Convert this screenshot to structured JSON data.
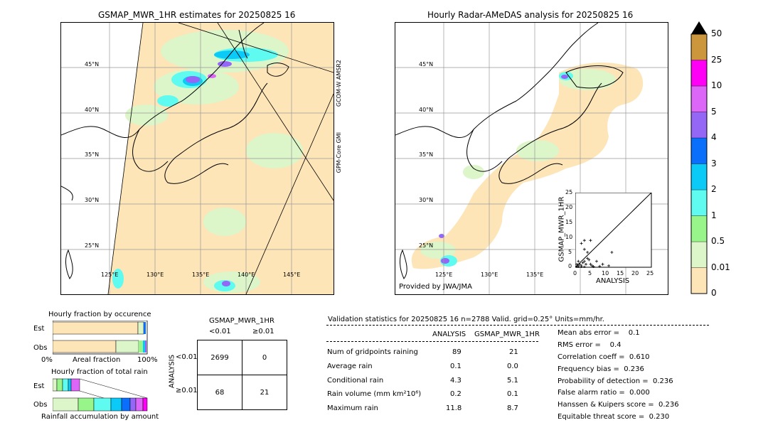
{
  "map_left": {
    "title": "GSMAP_MWR_1HR estimates for 20250825 16",
    "lat_labels": [
      "45°N",
      "40°N",
      "35°N",
      "30°N",
      "25°N"
    ],
    "lon_labels": [
      "125°E",
      "130°E",
      "135°E",
      "140°E",
      "145°E"
    ],
    "swath_labels": [
      "GCOM-W AMSR2",
      "GPM-Core GMI"
    ]
  },
  "map_right": {
    "title": "Hourly Radar-AMeDAS analysis for 20250825 16",
    "lat_labels": [
      "45°N",
      "40°N",
      "35°N",
      "30°N",
      "25°N"
    ],
    "lon_labels": [
      "125°E",
      "130°E",
      "135°E"
    ],
    "credit": "Provided by JWA/JMA"
  },
  "scatter_inset": {
    "xlabel": "ANALYSIS",
    "ylabel": "GSMAP_MWR_1HR",
    "ticks": [
      "0",
      "5",
      "10",
      "15",
      "20",
      "25"
    ]
  },
  "colorbar": {
    "labels": [
      "0",
      "0.01",
      "0.5",
      "1",
      "2",
      "3",
      "4",
      "5",
      "10",
      "25",
      "50"
    ],
    "colors": [
      "#fde5b8",
      "#dcf5c9",
      "#98f58a",
      "#5ffbf0",
      "#0ccaf7",
      "#0a6ffb",
      "#9567f7",
      "#dc66f7",
      "#ff00f7",
      "#cc963c"
    ]
  },
  "occurrence": {
    "title": "Hourly fraction by occurence",
    "row_labels": [
      "Est",
      "Obs"
    ],
    "axis_labels": [
      "0%",
      "Areal fraction",
      "100%"
    ],
    "est_fractions": [
      0.9,
      0.02,
      0.02,
      0.02,
      0.01
    ],
    "obs_fractions": [
      0.67,
      0.2,
      0.05,
      0.03,
      0.02
    ]
  },
  "total_rain": {
    "title": "Hourly fraction of total rain",
    "row_labels": [
      "Est",
      "Obs"
    ],
    "axis_label": "Rainfall accumulation by amount"
  },
  "contingency": {
    "title": "GSMAP_MWR_1HR",
    "col_headers": [
      "<0.01",
      "≥0.01"
    ],
    "row_headers": [
      "<0.01",
      "≥0.01"
    ],
    "side_label": "ANALYSIS",
    "cells": [
      [
        "2699",
        "0"
      ],
      [
        "68",
        "21"
      ]
    ]
  },
  "validation": {
    "header": "Validation statistics for 20250825 16  n=2788 Valid. grid=0.25° Units=mm/hr.",
    "col_headers": [
      "ANALYSIS",
      "GSMAP_MWR_1HR"
    ],
    "rows": [
      {
        "label": "Num of gridpoints raining",
        "analysis": "89",
        "gsmap": "21"
      },
      {
        "label": "Average rain",
        "analysis": "0.1",
        "gsmap": "0.0"
      },
      {
        "label": "Conditional rain",
        "analysis": "4.3",
        "gsmap": "5.1"
      },
      {
        "label": "Rain volume (mm km²10⁶)",
        "analysis": "0.2",
        "gsmap": "0.1"
      },
      {
        "label": "Maximum rain",
        "analysis": "11.8",
        "gsmap": "8.7"
      }
    ],
    "scores": [
      "Mean abs error =    0.1",
      "RMS error =    0.4",
      "Correlation coeff =  0.610",
      "Frequency bias =  0.236",
      "Probability of detection =  0.236",
      "False alarm ratio =  0.000",
      "Hanssen & Kuipers score =  0.236",
      "Equitable threat score =  0.230"
    ]
  },
  "chart_data": [
    {
      "type": "scatter",
      "title": "",
      "xlabel": "ANALYSIS",
      "ylabel": "GSMAP_MWR_1HR",
      "xlim": [
        0,
        25
      ],
      "ylim": [
        0,
        25
      ],
      "points": [
        [
          0.5,
          0.2
        ],
        [
          1,
          0.5
        ],
        [
          1.5,
          1
        ],
        [
          2,
          0.5
        ],
        [
          2.5,
          1.5
        ],
        [
          3,
          2
        ],
        [
          3.5,
          1
        ],
        [
          4,
          3
        ],
        [
          4.5,
          2.5
        ],
        [
          5,
          1
        ],
        [
          5.5,
          0.5
        ],
        [
          2,
          8
        ],
        [
          3,
          9
        ],
        [
          5,
          9
        ],
        [
          3,
          6
        ],
        [
          4,
          5
        ],
        [
          12,
          5
        ],
        [
          6,
          0.2
        ],
        [
          8,
          0.3
        ],
        [
          9,
          1
        ],
        [
          11,
          0.5
        ],
        [
          7,
          2
        ],
        [
          1,
          0.1
        ],
        [
          2,
          0.1
        ],
        [
          3,
          0.1
        ],
        [
          0.5,
          1
        ],
        [
          1,
          2
        ]
      ]
    },
    {
      "type": "table",
      "title": "Validation statistics",
      "columns": [
        "ANALYSIS",
        "GSMAP_MWR_1HR"
      ],
      "rows": [
        [
          "Num of gridpoints raining",
          "89",
          "21"
        ],
        [
          "Average rain",
          "0.1",
          "0.0"
        ],
        [
          "Conditional rain",
          "4.3",
          "5.1"
        ],
        [
          "Rain volume (mm km²10⁶)",
          "0.2",
          "0.1"
        ],
        [
          "Maximum rain",
          "11.8",
          "8.7"
        ]
      ]
    }
  ]
}
